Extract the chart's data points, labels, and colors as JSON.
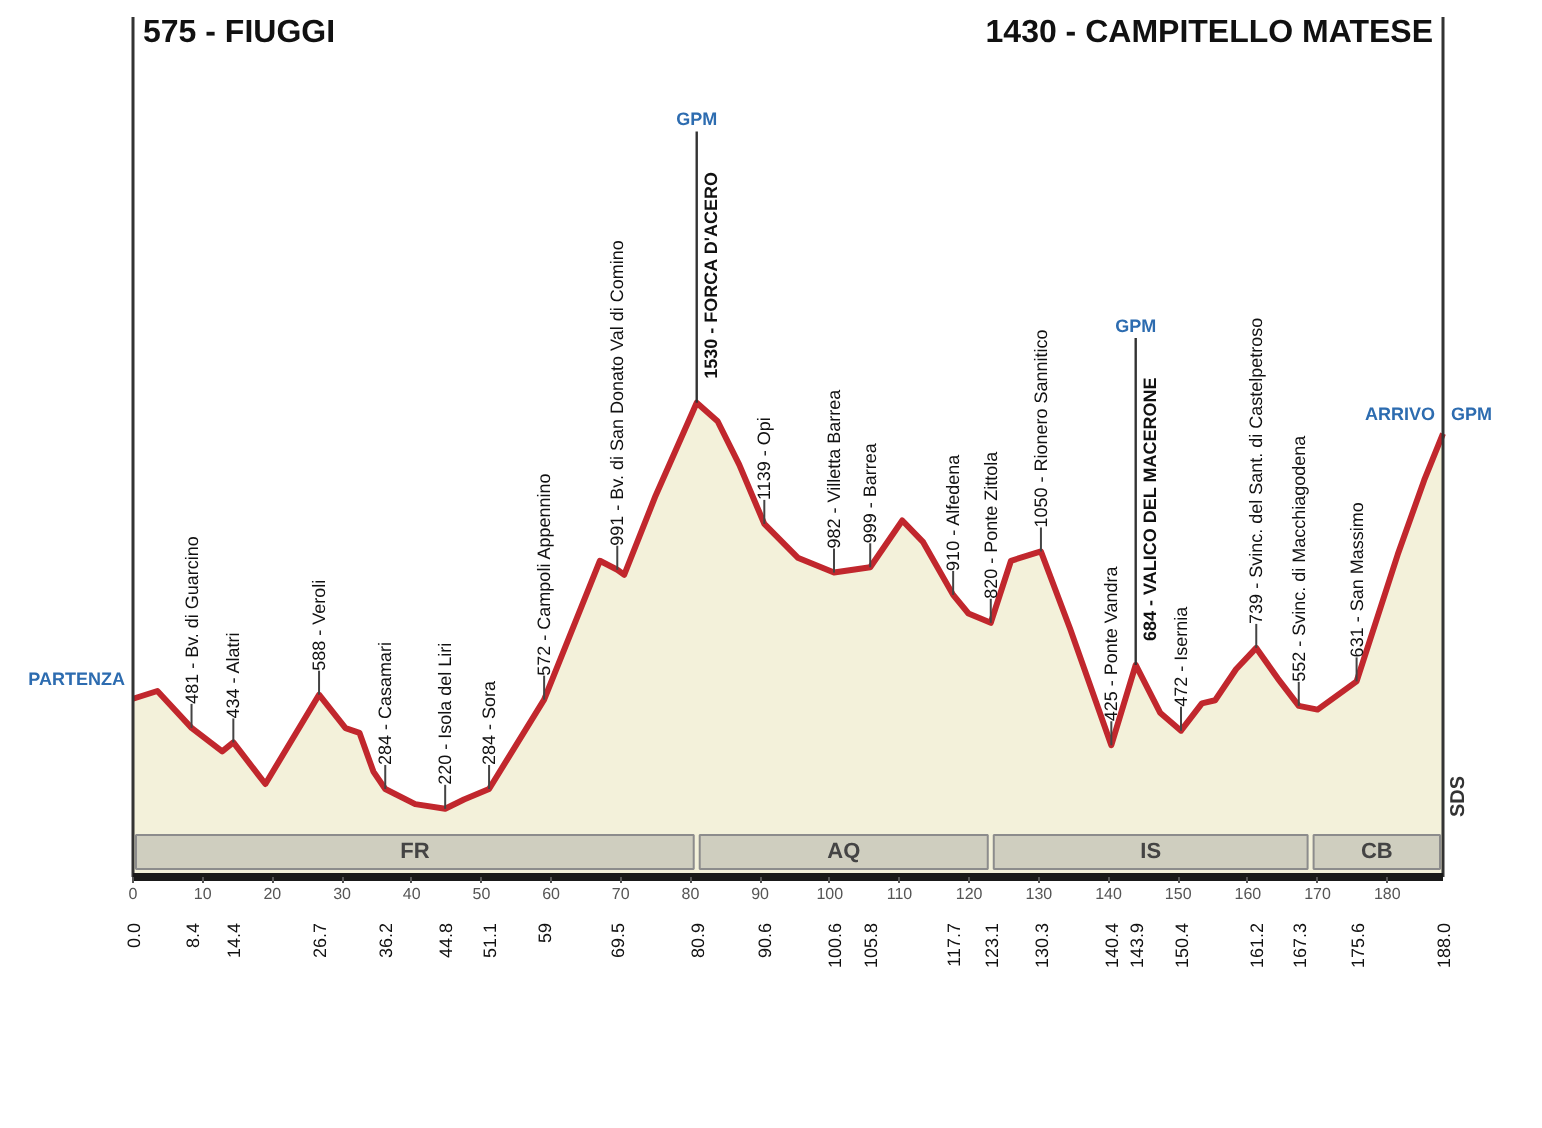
{
  "chart_data": {
    "type": "area",
    "xlim": [
      0,
      188
    ],
    "xticks": [
      0,
      10,
      20,
      30,
      40,
      50,
      60,
      70,
      80,
      90,
      100,
      110,
      120,
      130,
      140,
      150,
      160,
      170,
      180
    ],
    "x2lim": [
      0,
      188
    ],
    "x2ticks": [
      {
        "value": 0,
        "label": "0.0"
      },
      8.4,
      14.4,
      26.7,
      36.2,
      44.8,
      51.1,
      59,
      69.5,
      80.9,
      90.6,
      100.6,
      105.8,
      117.7,
      123.1,
      130.3,
      140.4,
      143.9,
      150.4,
      161.2,
      167.3,
      175.6,
      {
        "value": 188,
        "label": "188.0"
      }
    ],
    "tick_labels": "x",
    "series": [
      {
        "color": "#c1272d",
        "x": [
          0,
          3.5,
          8.4,
          12.8,
          14.4,
          19,
          26.7,
          30.5,
          32.5,
          34.5,
          36.2,
          40.5,
          44.8,
          47.5,
          51.1,
          59,
          67,
          69.5,
          70.5,
          75,
          80.9,
          83.9,
          87,
          90.6,
          95.4,
          100.6,
          105.8,
          110.4,
          113.4,
          117.7,
          119.9,
          123.1,
          126,
          130.3,
          134.5,
          140.4,
          143.9,
          147.4,
          150.4,
          153.4,
          155.3,
          158.3,
          161.2,
          164.3,
          167.3,
          170,
          175.6,
          181.5,
          185.3,
          188
        ],
        "values": [
          575,
          600,
          481,
          405,
          434,
          300,
          588,
          480,
          465,
          340,
          284,
          235,
          220,
          250,
          284,
          572,
          1020,
          991,
          975,
          1230,
          1530,
          1470,
          1330,
          1139,
          1030,
          982,
          999,
          1150,
          1080,
          910,
          850,
          820,
          1020,
          1050,
          800,
          425,
          684,
          530,
          472,
          560,
          570,
          670,
          739,
          640,
          552,
          540,
          631,
          1040,
          1280,
          1430
        ],
        "value_labels": [
          null,
          null,
          "481 - Bv. di Guarcino",
          null,
          "434 - Alatri",
          null,
          "588 - Veroli",
          null,
          null,
          null,
          "284 - Casamari",
          null,
          "220 - Isola del Liri",
          null,
          "284 - Sora",
          "572 - Campoli Appennino",
          null,
          "991 - Bv. di San Donato Val di Comino",
          null,
          null,
          "1530 - FORCA D'ACERO",
          null,
          null,
          "1139 - Opi",
          null,
          "982 - Villetta Barrea",
          "999 - Barrea",
          null,
          null,
          "910 - Alfedena",
          null,
          "820 - Ponte Zittola",
          null,
          "1050 - Rionero Sannitico",
          null,
          "425 - Ponte Vandra",
          "684 - VALICO DEL MACERONE",
          null,
          "472 - Isernia",
          null,
          null,
          null,
          "739 - Svinc. del Sant. di Castelpetroso",
          null,
          "552 - Svinc. di Macchiagodena",
          null,
          "631 - San Massimo",
          null,
          null,
          null
        ]
      }
    ],
    "ref_lines": [
      {
        "axis": "x",
        "value": 0,
        "label": "575 - FIUGGI"
      },
      {
        "axis": "x",
        "value": 188,
        "label": "1430 - CAMPITELLO MATESE"
      }
    ],
    "bands": [
      {
        "axis": "x",
        "from": 0,
        "to": 80.9,
        "label": "FR"
      },
      {
        "axis": "x",
        "from": 80.9,
        "to": 123.1,
        "label": "AQ"
      },
      {
        "axis": "x",
        "from": 123.1,
        "to": 169,
        "label": "IS"
      },
      {
        "axis": "x",
        "from": 169,
        "to": 188,
        "label": "CB"
      }
    ],
    "annotations": [
      {
        "text": "PARTENZA",
        "x": 0,
        "y": 575
      },
      {
        "text": "GPM",
        "x": 80.9,
        "y": 1530
      },
      {
        "text": "GPM",
        "x": 143.9,
        "y": 684
      },
      {
        "text": "GPM",
        "x": 188,
        "y": 1430
      },
      {
        "text": "ARRIVO",
        "x": 188,
        "y": 1430
      },
      "SDS"
    ]
  }
}
